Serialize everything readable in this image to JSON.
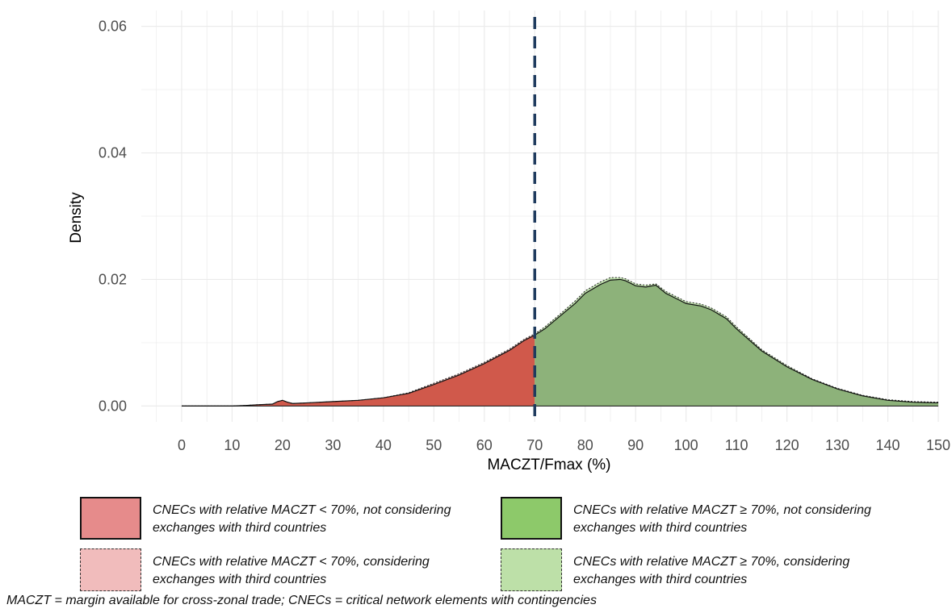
{
  "chart_data": {
    "type": "area",
    "title": "",
    "xlabel": "MACZT/Fmax (%)",
    "ylabel": "Density",
    "xlim": [
      -8,
      150
    ],
    "ylim": [
      -0.0025,
      0.0625
    ],
    "x_ticks": [
      0,
      10,
      20,
      30,
      40,
      50,
      60,
      70,
      80,
      90,
      100,
      110,
      120,
      130,
      140,
      150
    ],
    "y_ticks": [
      0.0,
      0.02,
      0.04,
      0.06
    ],
    "y_tick_labels": [
      "0.00",
      "0.02",
      "0.04",
      "0.06"
    ],
    "threshold": 70,
    "grid": true,
    "legend_position": "bottom",
    "series": [
      {
        "key": "not_considering",
        "x": [
          0,
          10,
          13,
          15,
          18,
          19,
          20,
          21,
          22,
          25,
          30,
          35,
          40,
          45,
          50,
          55,
          60,
          65,
          68,
          70,
          72,
          75,
          78,
          80,
          83,
          85,
          87,
          88,
          90,
          92,
          94,
          96,
          98,
          100,
          103,
          105,
          108,
          110,
          115,
          120,
          125,
          130,
          135,
          140,
          145,
          150
        ],
        "y": [
          0,
          0,
          0.0001,
          0.0002,
          0.0003,
          0.0007,
          0.0009,
          0.0006,
          0.0004,
          0.0005,
          0.0007,
          0.0009,
          0.0013,
          0.002,
          0.0034,
          0.0049,
          0.0067,
          0.0088,
          0.0104,
          0.0112,
          0.0122,
          0.0142,
          0.0162,
          0.0178,
          0.0192,
          0.0199,
          0.02,
          0.0198,
          0.019,
          0.0188,
          0.0191,
          0.0178,
          0.017,
          0.0162,
          0.0158,
          0.0152,
          0.0138,
          0.0122,
          0.0087,
          0.0062,
          0.0042,
          0.0027,
          0.0016,
          0.0009,
          0.0006,
          0.0005
        ]
      },
      {
        "key": "considering",
        "x": [
          0,
          10,
          13,
          15,
          18,
          19,
          20,
          21,
          22,
          25,
          30,
          35,
          40,
          45,
          50,
          55,
          60,
          65,
          68,
          70,
          72,
          75,
          78,
          80,
          83,
          85,
          87,
          88,
          90,
          92,
          94,
          96,
          98,
          100,
          103,
          105,
          108,
          110,
          115,
          120,
          125,
          130,
          135,
          140,
          145,
          150
        ],
        "y": [
          0,
          0,
          0.0001,
          0.0002,
          0.0003,
          0.0007,
          0.0009,
          0.0006,
          0.0004,
          0.0005,
          0.0007,
          0.0009,
          0.0013,
          0.0021,
          0.0036,
          0.0051,
          0.0069,
          0.009,
          0.0106,
          0.0114,
          0.0125,
          0.0145,
          0.0166,
          0.0182,
          0.0196,
          0.0203,
          0.0203,
          0.0201,
          0.0193,
          0.0191,
          0.0193,
          0.0181,
          0.0173,
          0.0165,
          0.0161,
          0.0155,
          0.0141,
          0.0125,
          0.0089,
          0.0064,
          0.0043,
          0.0028,
          0.0017,
          0.001,
          0.0007,
          0.0006
        ]
      }
    ]
  },
  "colors": {
    "red_fill": "#d0594b",
    "green_fill": "#8db27a",
    "threshold_line": "#1f3b5e",
    "grid": "#ebebeb",
    "legend_red_solid": "#e68b8b",
    "legend_green_solid": "#8dc96a",
    "legend_red_light": "#f1bcbc",
    "legend_green_light": "#bde0a8"
  },
  "legend": {
    "red_solid": "CNECs with relative MACZT < 70%, not considering exchanges with third countries",
    "green_solid": "CNECs with relative MACZT ≥ 70%, not considering exchanges with third countries",
    "red_dashed": "CNECs with relative MACZT < 70%, considering exchanges with third countries",
    "green_dashed": "CNECs with relative MACZT ≥ 70%, considering exchanges with third countries"
  },
  "footnote": "MACZT = margin available for cross-zonal trade; CNECs = critical network elements with contingencies"
}
